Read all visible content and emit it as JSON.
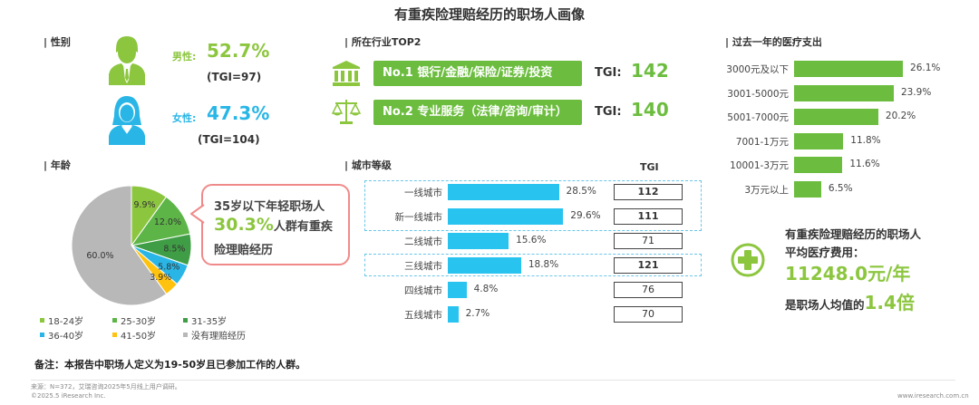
{
  "title": "有重疾险理赔经历的职场人画像",
  "colors": {
    "green": "#8cc63f",
    "blue": "#29b6e6",
    "bar_green": "#6cbd3f",
    "city_blue": "#29c3f0",
    "gray": "#b8b8b8"
  },
  "gender": {
    "heading": "| 性别",
    "male_label": "男性:",
    "male_value": "52.7%",
    "male_tgi": "(TGI=97)",
    "female_label": "女性:",
    "female_value": "47.3%",
    "female_tgi": "(TGI=104)",
    "male_icon": "male-user-icon",
    "female_icon": "female-user-icon"
  },
  "industry": {
    "heading": "| 所在行业TOP2",
    "items": [
      {
        "label": "No.1 银行/金融/保险/证券/投资",
        "tgi_label": "TGI:",
        "tgi": "142",
        "icon": "bank-icon"
      },
      {
        "label": "No.2 专业服务（法律/咨询/审计）",
        "tgi_label": "TGI:",
        "tgi": "140",
        "icon": "scales-icon"
      }
    ]
  },
  "age": {
    "heading": "| 年龄",
    "callout": {
      "line1": "35岁以下年轻职场人",
      "highlight": "30.3%",
      "line2_rest": "人群有重疾",
      "line3": "险理赔经历"
    },
    "slice_colors": [
      "#8cc63f",
      "#5db548",
      "#3f9e45",
      "#29b6e6",
      "#ffc20e",
      "#b8b8b8"
    ]
  },
  "city": {
    "heading": "| 城市等级",
    "tgi_header": "TGI",
    "rows": [
      {
        "name": "一线城市",
        "pct": 28.5,
        "pct_label": "28.5%",
        "tgi": "112",
        "highlight": true
      },
      {
        "name": "新一线城市",
        "pct": 29.6,
        "pct_label": "29.6%",
        "tgi": "111",
        "highlight": true
      },
      {
        "name": "二线城市",
        "pct": 15.6,
        "pct_label": "15.6%",
        "tgi": "71",
        "highlight": false
      },
      {
        "name": "三线城市",
        "pct": 18.8,
        "pct_label": "18.8%",
        "tgi": "121",
        "highlight": true
      },
      {
        "name": "四线城市",
        "pct": 4.8,
        "pct_label": "4.8%",
        "tgi": "76",
        "highlight": false
      },
      {
        "name": "五线城市",
        "pct": 2.7,
        "pct_label": "2.7%",
        "tgi": "70",
        "highlight": false
      }
    ]
  },
  "medical": {
    "heading": "| 过去一年的医疗支出",
    "rows": [
      {
        "name": "3000元及以下",
        "pct": 26.1,
        "pct_label": "26.1%"
      },
      {
        "name": "3001-5000元",
        "pct": 23.9,
        "pct_label": "23.9%"
      },
      {
        "name": "5001-7000元",
        "pct": 20.2,
        "pct_label": "20.2%"
      },
      {
        "name": "7001-1万元",
        "pct": 11.8,
        "pct_label": "11.8%"
      },
      {
        "name": "10001-3万元",
        "pct": 11.6,
        "pct_label": "11.6%"
      },
      {
        "name": "3万元以上",
        "pct": 6.5,
        "pct_label": "6.5%"
      }
    ],
    "summary_line1": "有重疾险理赔经历的职场人",
    "summary_line2": "平均医疗费用：",
    "summary_value": "11248.0元/年",
    "summary_line3_pre": "是职场人均值的",
    "summary_multiple": "1.4倍",
    "summary_icon": "plus-circle-icon"
  },
  "note": "备注：本报告中职场人定义为19-50岁且已参加工作的人群。",
  "source": "来源：N=372，艾瑞咨询2025年5月线上用户调研。",
  "copyright": "©2025.5 iResearch Inc.",
  "website": "www.iresearch.com.cn",
  "chart_data": [
    {
      "type": "pie",
      "categories": [
        "18-24岁",
        "25-30岁",
        "31-35岁",
        "36-40岁",
        "41-50岁",
        "没有理赔经历"
      ],
      "values": [
        9.9,
        12.0,
        8.5,
        5.8,
        3.9,
        60.0
      ],
      "value_labels": [
        "9.9%",
        "12.0%",
        "8.5%",
        "5.8%",
        "3.9%",
        "60.0%"
      ],
      "legend": "bottom"
    },
    {
      "type": "bar",
      "orientation": "horizontal",
      "categories": [
        "一线城市",
        "新一线城市",
        "二线城市",
        "三线城市",
        "四线城市",
        "五线城市"
      ],
      "values": [
        28.5,
        29.6,
        15.6,
        18.8,
        4.8,
        2.7
      ],
      "tgi": [
        112,
        111,
        71,
        121,
        76,
        70
      ]
    },
    {
      "type": "bar",
      "orientation": "horizontal",
      "categories": [
        "3000元及以下",
        "3001-5000元",
        "5001-7000元",
        "7001-1万元",
        "10001-3万元",
        "3万元以上"
      ],
      "values": [
        26.1,
        23.9,
        20.2,
        11.8,
        11.6,
        6.5
      ]
    }
  ]
}
